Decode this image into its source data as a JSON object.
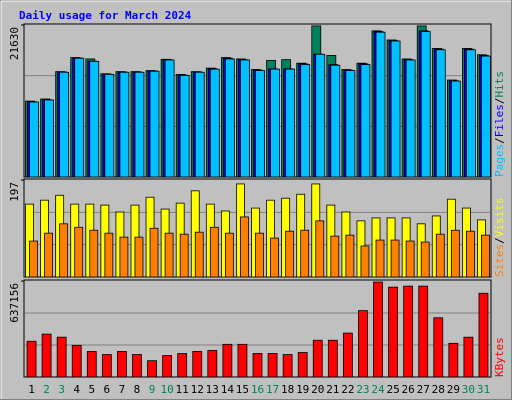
{
  "title": "Daily usage for March 2024",
  "legend_separator": "/",
  "chart_data": [
    {
      "type": "bar",
      "ylim": [
        0,
        21630
      ],
      "yticks": [
        21630
      ],
      "series": [
        {
          "name": "Hits",
          "color": "#00805C",
          "values": [
            10800,
            11100,
            15000,
            17000,
            16800,
            14700,
            15000,
            15000,
            15150,
            16750,
            14600,
            15000,
            15500,
            17000,
            16800,
            15300,
            16600,
            16700,
            16200,
            21500,
            17300,
            15300,
            16200,
            20800,
            19500,
            16800,
            21500,
            18300,
            13800,
            18300,
            17400
          ]
        },
        {
          "name": "Files",
          "color": "#0000FF",
          "values": [
            10700,
            11000,
            14950,
            16950,
            16500,
            14650,
            14950,
            14950,
            15100,
            16700,
            14500,
            14950,
            15400,
            16900,
            16700,
            15200,
            15400,
            15400,
            16100,
            17500,
            16000,
            15200,
            16100,
            20700,
            19400,
            16700,
            20800,
            18200,
            13700,
            18200,
            17300
          ]
        },
        {
          "name": "Pages",
          "color": "#00C0FF",
          "values": [
            10670,
            10960,
            14900,
            16900,
            16450,
            14600,
            14900,
            14900,
            15050,
            16650,
            14460,
            14900,
            15340,
            16800,
            16650,
            15150,
            15350,
            15350,
            16000,
            17450,
            15900,
            15150,
            16000,
            20600,
            19350,
            16650,
            20700,
            18100,
            13650,
            18100,
            17200
          ]
        }
      ]
    },
    {
      "type": "bar",
      "ylim": [
        0,
        197
      ],
      "yticks": [
        197
      ],
      "series": [
        {
          "name": "Visits",
          "color": "#FFFF00",
          "values": [
            148,
            156,
            166,
            148,
            148,
            146,
            132,
            146,
            162,
            138,
            150,
            175,
            148,
            134,
            189,
            140,
            156,
            160,
            168,
            189,
            146,
            132,
            114,
            120,
            120,
            120,
            108,
            124,
            158,
            140,
            116
          ]
        },
        {
          "name": "Sites",
          "color": "#FF8000",
          "values": [
            73,
            89,
            108,
            101,
            95,
            89,
            81,
            81,
            99,
            89,
            87,
            91,
            101,
            89,
            122,
            89,
            79,
            93,
            95,
            114,
            83,
            85,
            63,
            75,
            75,
            73,
            71,
            87,
            95,
            93,
            85
          ]
        }
      ]
    },
    {
      "type": "bar",
      "ylim": [
        0,
        637156
      ],
      "yticks": [
        637156
      ],
      "categories": [
        "1",
        "2",
        "3",
        "4",
        "5",
        "6",
        "7",
        "8",
        "9",
        "10",
        "11",
        "12",
        "13",
        "14",
        "15",
        "16",
        "17",
        "18",
        "19",
        "20",
        "21",
        "22",
        "23",
        "24",
        "25",
        "26",
        "27",
        "28",
        "29",
        "30",
        "31"
      ],
      "label_colors": [
        "#000000",
        "#00805C",
        "#00805C",
        "#000000",
        "#000000",
        "#000000",
        "#000000",
        "#000000",
        "#00805C",
        "#00805C",
        "#000000",
        "#000000",
        "#000000",
        "#000000",
        "#000000",
        "#00805C",
        "#00805C",
        "#000000",
        "#000000",
        "#000000",
        "#000000",
        "#000000",
        "#00805C",
        "#00805C",
        "#000000",
        "#000000",
        "#000000",
        "#000000",
        "#000000",
        "#00805C",
        "#00805C"
      ],
      "series": [
        {
          "name": "KBytes",
          "color": "#FF0000",
          "values": [
            237230,
            284680,
            264340,
            210120,
            169450,
            149120,
            169450,
            149120,
            108450,
            142340,
            155890,
            169450,
            176230,
            216900,
            216900,
            155890,
            155890,
            149120,
            162670,
            244010,
            244010,
            291450,
            440570,
            630350,
            596460,
            603240,
            603240,
            393120,
            223670,
            264340,
            555800
          ]
        }
      ]
    }
  ]
}
